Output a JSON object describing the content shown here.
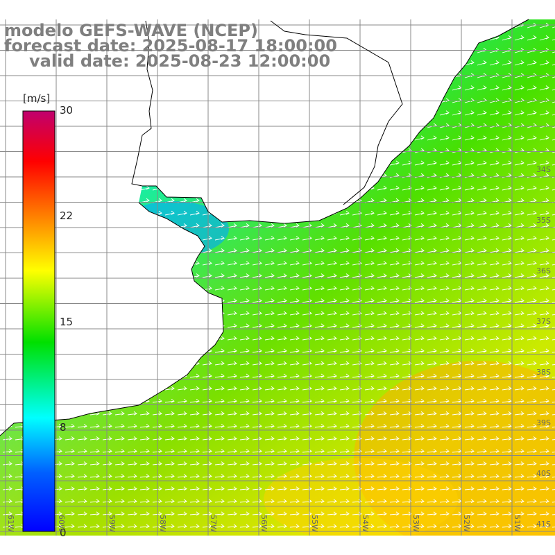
{
  "title": {
    "line1": "modelo GEFS-WAVE (NCEP)",
    "line2": "forecast date: 2025-08-17 18:00:00",
    "line3": "valid date: 2025-08-23 12:00:00"
  },
  "colorbar": {
    "unit": "[m/s]",
    "ticks": [
      "0",
      "8",
      "15",
      "22",
      "30"
    ],
    "range": [
      0,
      30
    ],
    "gradient": [
      "#0000ff",
      "#0080ff",
      "#00ffff",
      "#00e000",
      "#ffff00",
      "#ff8000",
      "#ff0000",
      "#c0006e"
    ]
  },
  "map": {
    "field": "wind speed",
    "units": "m/s",
    "lat_labels": [
      "34S",
      "35S",
      "36S",
      "37S",
      "38S",
      "39S",
      "40S",
      "41S"
    ],
    "lon_labels": [
      "61W",
      "60W",
      "59W",
      "58W",
      "57W",
      "56W",
      "55W",
      "54W",
      "53W",
      "52W",
      "51W"
    ],
    "land_color": "#ffffff",
    "grid_color": "#888888",
    "arrow_color": "#ffffff"
  }
}
